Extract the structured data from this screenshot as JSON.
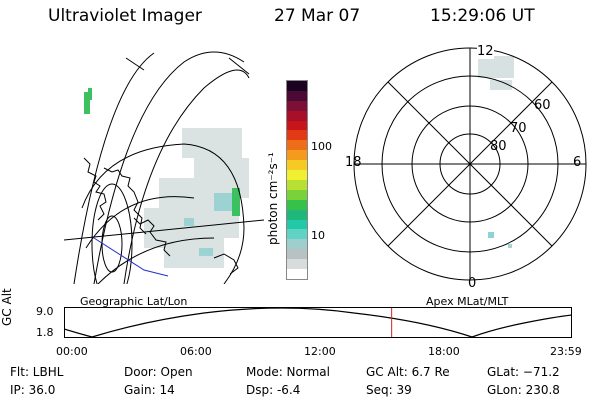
{
  "header": {
    "instrument": "Ultraviolet Imager",
    "date": "27 Mar 07",
    "time": "15:29:06 UT"
  },
  "colorbar": {
    "label": "photon cm⁻²s⁻¹",
    "ticks": [
      "100",
      "10"
    ],
    "colors": [
      "#ffffff",
      "#d8dcdc",
      "#b8c2c2",
      "#9ecece",
      "#5fd3c4",
      "#22c9a8",
      "#1fb87a",
      "#36c24a",
      "#7ad23a",
      "#b8e033",
      "#f0f030",
      "#f7c924",
      "#f49a1c",
      "#ee6d18",
      "#e23a14",
      "#c7151c",
      "#a8102a",
      "#7c0f36",
      "#4a0a35",
      "#1a0320"
    ]
  },
  "geo_map": {
    "label": "Geographic Lat/Lon"
  },
  "polar_plot": {
    "label": "Apex MLat/MLT",
    "mlt_labels": {
      "top": "12",
      "left": "18",
      "right": "6",
      "bottom": "0"
    },
    "lat_labels": [
      "60",
      "70",
      "80"
    ]
  },
  "orbit_plot": {
    "ylabel": "GC Alt",
    "yticks": [
      "9.0",
      "1.8"
    ],
    "xticks": [
      "00:00",
      "06:00",
      "12:00",
      "18:00",
      "23:59"
    ],
    "current_time_fraction": 0.645,
    "marker_color": "#d02020"
  },
  "info": {
    "filter": "Flt: LBHL",
    "door": "Door: Open",
    "mode": "Mode: Normal",
    "gc_alt": "GC Alt: 6.7 Re",
    "glat": "GLat: −71.2",
    "ip": "IP: 36.0",
    "gain": "Gain: 14",
    "dsp": "Dsp:    -6.4",
    "seq": "Seq: 39",
    "glon": "GLon: 230.8"
  }
}
